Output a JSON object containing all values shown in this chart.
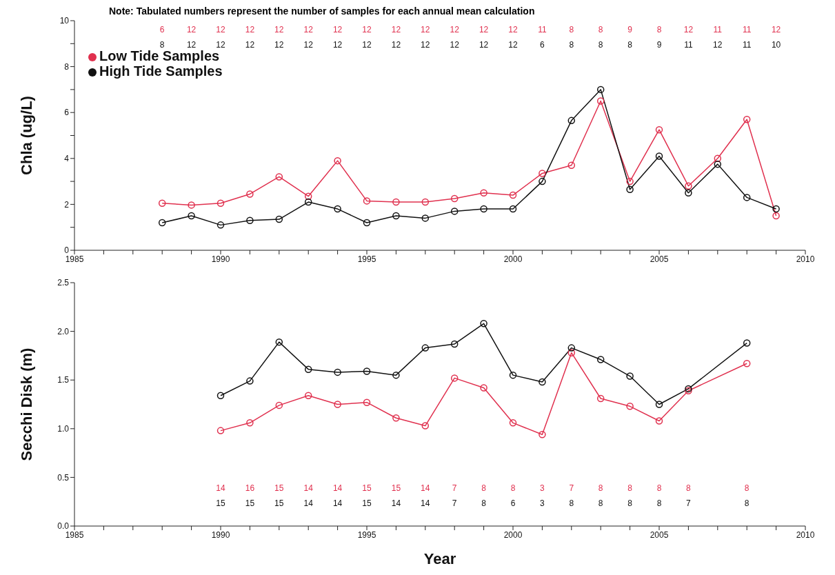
{
  "chart_data": [
    {
      "type": "line",
      "ylabel": "Chla (ug/L)",
      "x": [
        1988,
        1989,
        1990,
        1991,
        1992,
        1993,
        1994,
        1995,
        1996,
        1997,
        1998,
        1999,
        2000,
        2001,
        2002,
        2003,
        2004,
        2005,
        2006,
        2007,
        2008,
        2009
      ],
      "series": [
        {
          "name": "Low Tide Samples",
          "color": "#e0304e",
          "values": [
            2.05,
            1.97,
            2.05,
            2.45,
            3.2,
            2.35,
            3.9,
            2.15,
            2.1,
            2.1,
            2.25,
            2.5,
            2.4,
            3.35,
            3.7,
            6.5,
            3.0,
            5.25,
            2.8,
            4.0,
            5.7,
            1.5
          ]
        },
        {
          "name": "High Tide Samples",
          "color": "#111111",
          "values": [
            1.2,
            1.5,
            1.1,
            1.3,
            1.35,
            2.1,
            1.8,
            1.2,
            1.5,
            1.4,
            1.7,
            1.8,
            1.8,
            3.0,
            5.65,
            7.0,
            2.65,
            4.1,
            2.5,
            3.75,
            2.3,
            1.8
          ]
        }
      ],
      "xlim": [
        1985,
        2010
      ],
      "xticks": [
        1985,
        {
          "value": 1986,
          "label": null
        },
        {
          "value": 1987,
          "label": null
        },
        {
          "value": 1988,
          "label": null
        },
        {
          "value": 1989,
          "label": null
        },
        1990,
        {
          "value": 1991,
          "label": null
        },
        {
          "value": 1992,
          "label": null
        },
        {
          "value": 1993,
          "label": null
        },
        {
          "value": 1994,
          "label": null
        },
        1995,
        {
          "value": 1996,
          "label": null
        },
        {
          "value": 1997,
          "label": null
        },
        {
          "value": 1998,
          "label": null
        },
        {
          "value": 1999,
          "label": null
        },
        2000,
        {
          "value": 2001,
          "label": null
        },
        {
          "value": 2002,
          "label": null
        },
        {
          "value": 2003,
          "label": null
        },
        {
          "value": 2004,
          "label": null
        },
        2005,
        {
          "value": 2006,
          "label": null
        },
        {
          "value": 2007,
          "label": null
        },
        {
          "value": 2008,
          "label": null
        },
        {
          "value": 2009,
          "label": null
        },
        2010
      ],
      "ylim": [
        0,
        10
      ],
      "yticks": [
        0,
        {
          "value": 1,
          "label": null
        },
        2,
        {
          "value": 3,
          "label": null
        },
        4,
        {
          "value": 5,
          "label": null
        },
        6,
        {
          "value": 7,
          "label": null
        },
        8,
        {
          "value": 9,
          "label": null
        },
        10
      ],
      "marker": "circle",
      "legend": "top left",
      "annotations": [
        "Note: Tabulated numbers represent the number of samples for each annual mean calculation",
        "6",
        "12",
        "12",
        "12",
        "12",
        "12",
        "12",
        "12",
        "12",
        "12",
        "12",
        "12",
        "12",
        "11",
        "8",
        "8",
        "9",
        "8",
        "12",
        "11",
        "11",
        "12",
        "8",
        "12",
        "12",
        "12",
        "12",
        "12",
        "12",
        "12",
        "12",
        "12",
        "12",
        "12",
        "12",
        "6",
        "8",
        "8",
        "8",
        "9",
        "11",
        "12",
        "11",
        "10"
      ]
    },
    {
      "type": "line",
      "xlabel": "Year",
      "ylabel": "Secchi Disk (m)",
      "x": [
        1990,
        1991,
        1992,
        1993,
        1994,
        1995,
        1996,
        1997,
        1998,
        1999,
        2000,
        2001,
        2002,
        2003,
        2004,
        2005,
        2006,
        2008
      ],
      "series": [
        {
          "color": "#e0304e",
          "values": [
            0.98,
            1.06,
            1.24,
            1.34,
            1.25,
            1.27,
            1.11,
            1.03,
            1.52,
            1.42,
            1.06,
            0.94,
            1.78,
            1.31,
            1.23,
            1.08,
            1.39,
            1.67
          ]
        },
        {
          "color": "#111111",
          "values": [
            1.34,
            1.49,
            1.89,
            1.61,
            1.58,
            1.59,
            1.55,
            1.83,
            1.87,
            2.08,
            1.55,
            1.48,
            1.83,
            1.71,
            1.54,
            1.25,
            1.41,
            1.88
          ]
        }
      ],
      "xlim": [
        1985,
        2010
      ],
      "xticks": [
        1985,
        {
          "value": 1986,
          "label": null
        },
        {
          "value": 1987,
          "label": null
        },
        {
          "value": 1988,
          "label": null
        },
        {
          "value": 1989,
          "label": null
        },
        1990,
        {
          "value": 1991,
          "label": null
        },
        {
          "value": 1992,
          "label": null
        },
        {
          "value": 1993,
          "label": null
        },
        {
          "value": 1994,
          "label": null
        },
        1995,
        {
          "value": 1996,
          "label": null
        },
        {
          "value": 1997,
          "label": null
        },
        {
          "value": 1998,
          "label": null
        },
        {
          "value": 1999,
          "label": null
        },
        2000,
        {
          "value": 2001,
          "label": null
        },
        {
          "value": 2002,
          "label": null
        },
        {
          "value": 2003,
          "label": null
        },
        {
          "value": 2004,
          "label": null
        },
        2005,
        {
          "value": 2006,
          "label": null
        },
        {
          "value": 2007,
          "label": null
        },
        {
          "value": 2008,
          "label": null
        },
        {
          "value": 2009,
          "label": null
        },
        2010
      ],
      "ylim": [
        0,
        2.5
      ],
      "yticks": [
        {
          "value": 0,
          "label": "0.0"
        },
        {
          "value": 0.5,
          "label": "0.5"
        },
        {
          "value": 1,
          "label": "1.0"
        },
        {
          "value": 1.5,
          "label": "1.5"
        },
        {
          "value": 2,
          "label": "2.0"
        },
        {
          "value": 2.5,
          "label": "2.5"
        }
      ],
      "marker": "circle",
      "annotations": [
        "14",
        "16",
        "15",
        "14",
        "14",
        "15",
        "15",
        "14",
        "7",
        "8",
        "8",
        "3",
        "7",
        "8",
        "8",
        "8",
        "8",
        "8",
        "15",
        "15",
        "15",
        "14",
        "14",
        "15",
        "14",
        "14",
        "7",
        "8",
        "6",
        "3",
        "8",
        "8",
        "8",
        "8",
        "7",
        "8"
      ]
    }
  ]
}
